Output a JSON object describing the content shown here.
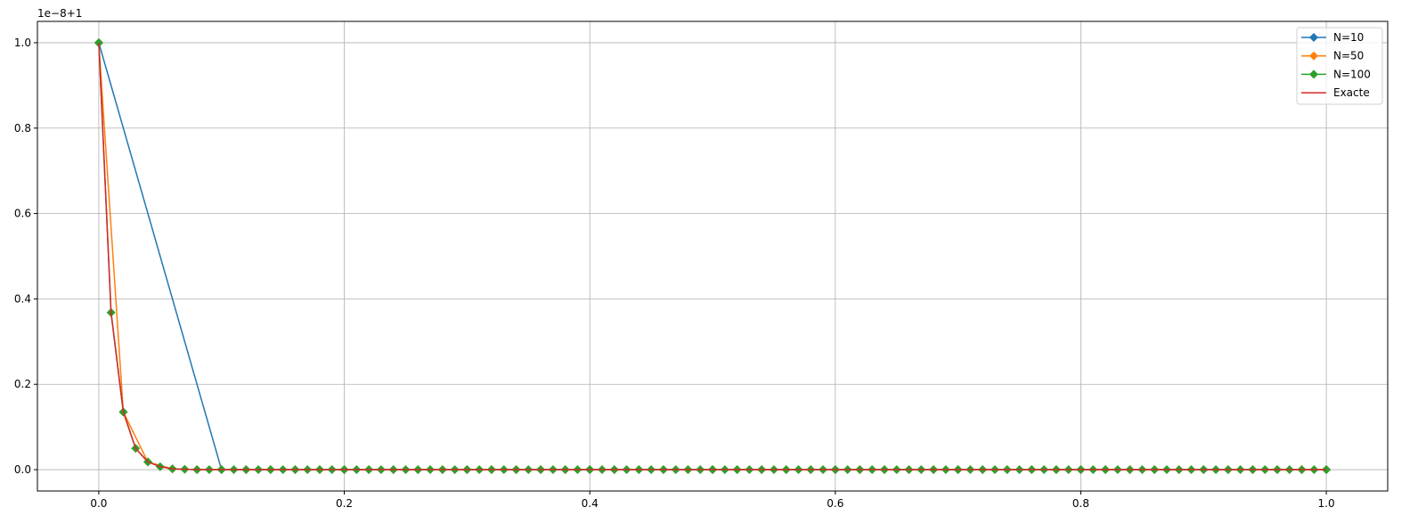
{
  "chart_data": {
    "type": "line",
    "title": "",
    "xlabel": "",
    "ylabel": "",
    "y_offset_text": "1e−8+1",
    "xlim": [
      -0.05,
      1.05
    ],
    "ylim": [
      -0.05,
      1.05
    ],
    "xticks": [
      0.0,
      0.2,
      0.4,
      0.6,
      0.8,
      1.0
    ],
    "xtick_labels": [
      "0.0",
      "0.2",
      "0.4",
      "0.6",
      "0.8",
      "1.0"
    ],
    "yticks": [
      0.0,
      0.2,
      0.4,
      0.6,
      0.8,
      1.0
    ],
    "ytick_labels": [
      "0.0",
      "0.2",
      "0.4",
      "0.6",
      "0.8",
      "1.0"
    ],
    "grid": true,
    "legend_position": "top-right",
    "series": [
      {
        "name": "N=10",
        "color": "#1f77b4",
        "marker": "diamond",
        "x_step": 0.1,
        "values": [
          1,
          0,
          0,
          0,
          0,
          0,
          0,
          0,
          0,
          0,
          0
        ]
      },
      {
        "name": "N=50",
        "color": "#ff7f0e",
        "marker": "diamond",
        "x_step": 0.02,
        "values": [
          1,
          0.135,
          0.018,
          0.002,
          0,
          0,
          0,
          0,
          0,
          0,
          0,
          0,
          0,
          0,
          0,
          0,
          0,
          0,
          0,
          0,
          0,
          0,
          0,
          0,
          0,
          0,
          0,
          0,
          0,
          0,
          0,
          0,
          0,
          0,
          0,
          0,
          0,
          0,
          0,
          0,
          0,
          0,
          0,
          0,
          0,
          0,
          0,
          0,
          0,
          0,
          0
        ]
      },
      {
        "name": "N=100",
        "color": "#2ca02c",
        "marker": "diamond",
        "x_step": 0.01,
        "values": [
          1,
          0.368,
          0.135,
          0.05,
          0.018,
          0.007,
          0.002,
          0.001,
          0,
          0,
          0,
          0,
          0,
          0,
          0,
          0,
          0,
          0,
          0,
          0,
          0,
          0,
          0,
          0,
          0,
          0,
          0,
          0,
          0,
          0,
          0,
          0,
          0,
          0,
          0,
          0,
          0,
          0,
          0,
          0,
          0,
          0,
          0,
          0,
          0,
          0,
          0,
          0,
          0,
          0,
          0,
          0,
          0,
          0,
          0,
          0,
          0,
          0,
          0,
          0,
          0,
          0,
          0,
          0,
          0,
          0,
          0,
          0,
          0,
          0,
          0,
          0,
          0,
          0,
          0,
          0,
          0,
          0,
          0,
          0,
          0,
          0,
          0,
          0,
          0,
          0,
          0,
          0,
          0,
          0,
          0,
          0,
          0,
          0,
          0,
          0,
          0,
          0,
          0,
          0,
          0
        ]
      },
      {
        "name": "Exacte",
        "color": "#d62728",
        "marker": "none",
        "x_step": 0.01,
        "values": [
          1,
          0.368,
          0.135,
          0.05,
          0.018,
          0.007,
          0.002,
          0.001,
          0,
          0,
          0,
          0,
          0,
          0,
          0,
          0,
          0,
          0,
          0,
          0,
          0,
          0,
          0,
          0,
          0,
          0,
          0,
          0,
          0,
          0,
          0,
          0,
          0,
          0,
          0,
          0,
          0,
          0,
          0,
          0,
          0,
          0,
          0,
          0,
          0,
          0,
          0,
          0,
          0,
          0,
          0,
          0,
          0,
          0,
          0,
          0,
          0,
          0,
          0,
          0,
          0,
          0,
          0,
          0,
          0,
          0,
          0,
          0,
          0,
          0,
          0,
          0,
          0,
          0,
          0,
          0,
          0,
          0,
          0,
          0,
          0,
          0,
          0,
          0,
          0,
          0,
          0,
          0,
          0,
          0,
          0,
          0,
          0,
          0,
          0,
          0,
          0,
          0,
          0,
          0,
          0
        ]
      }
    ]
  }
}
